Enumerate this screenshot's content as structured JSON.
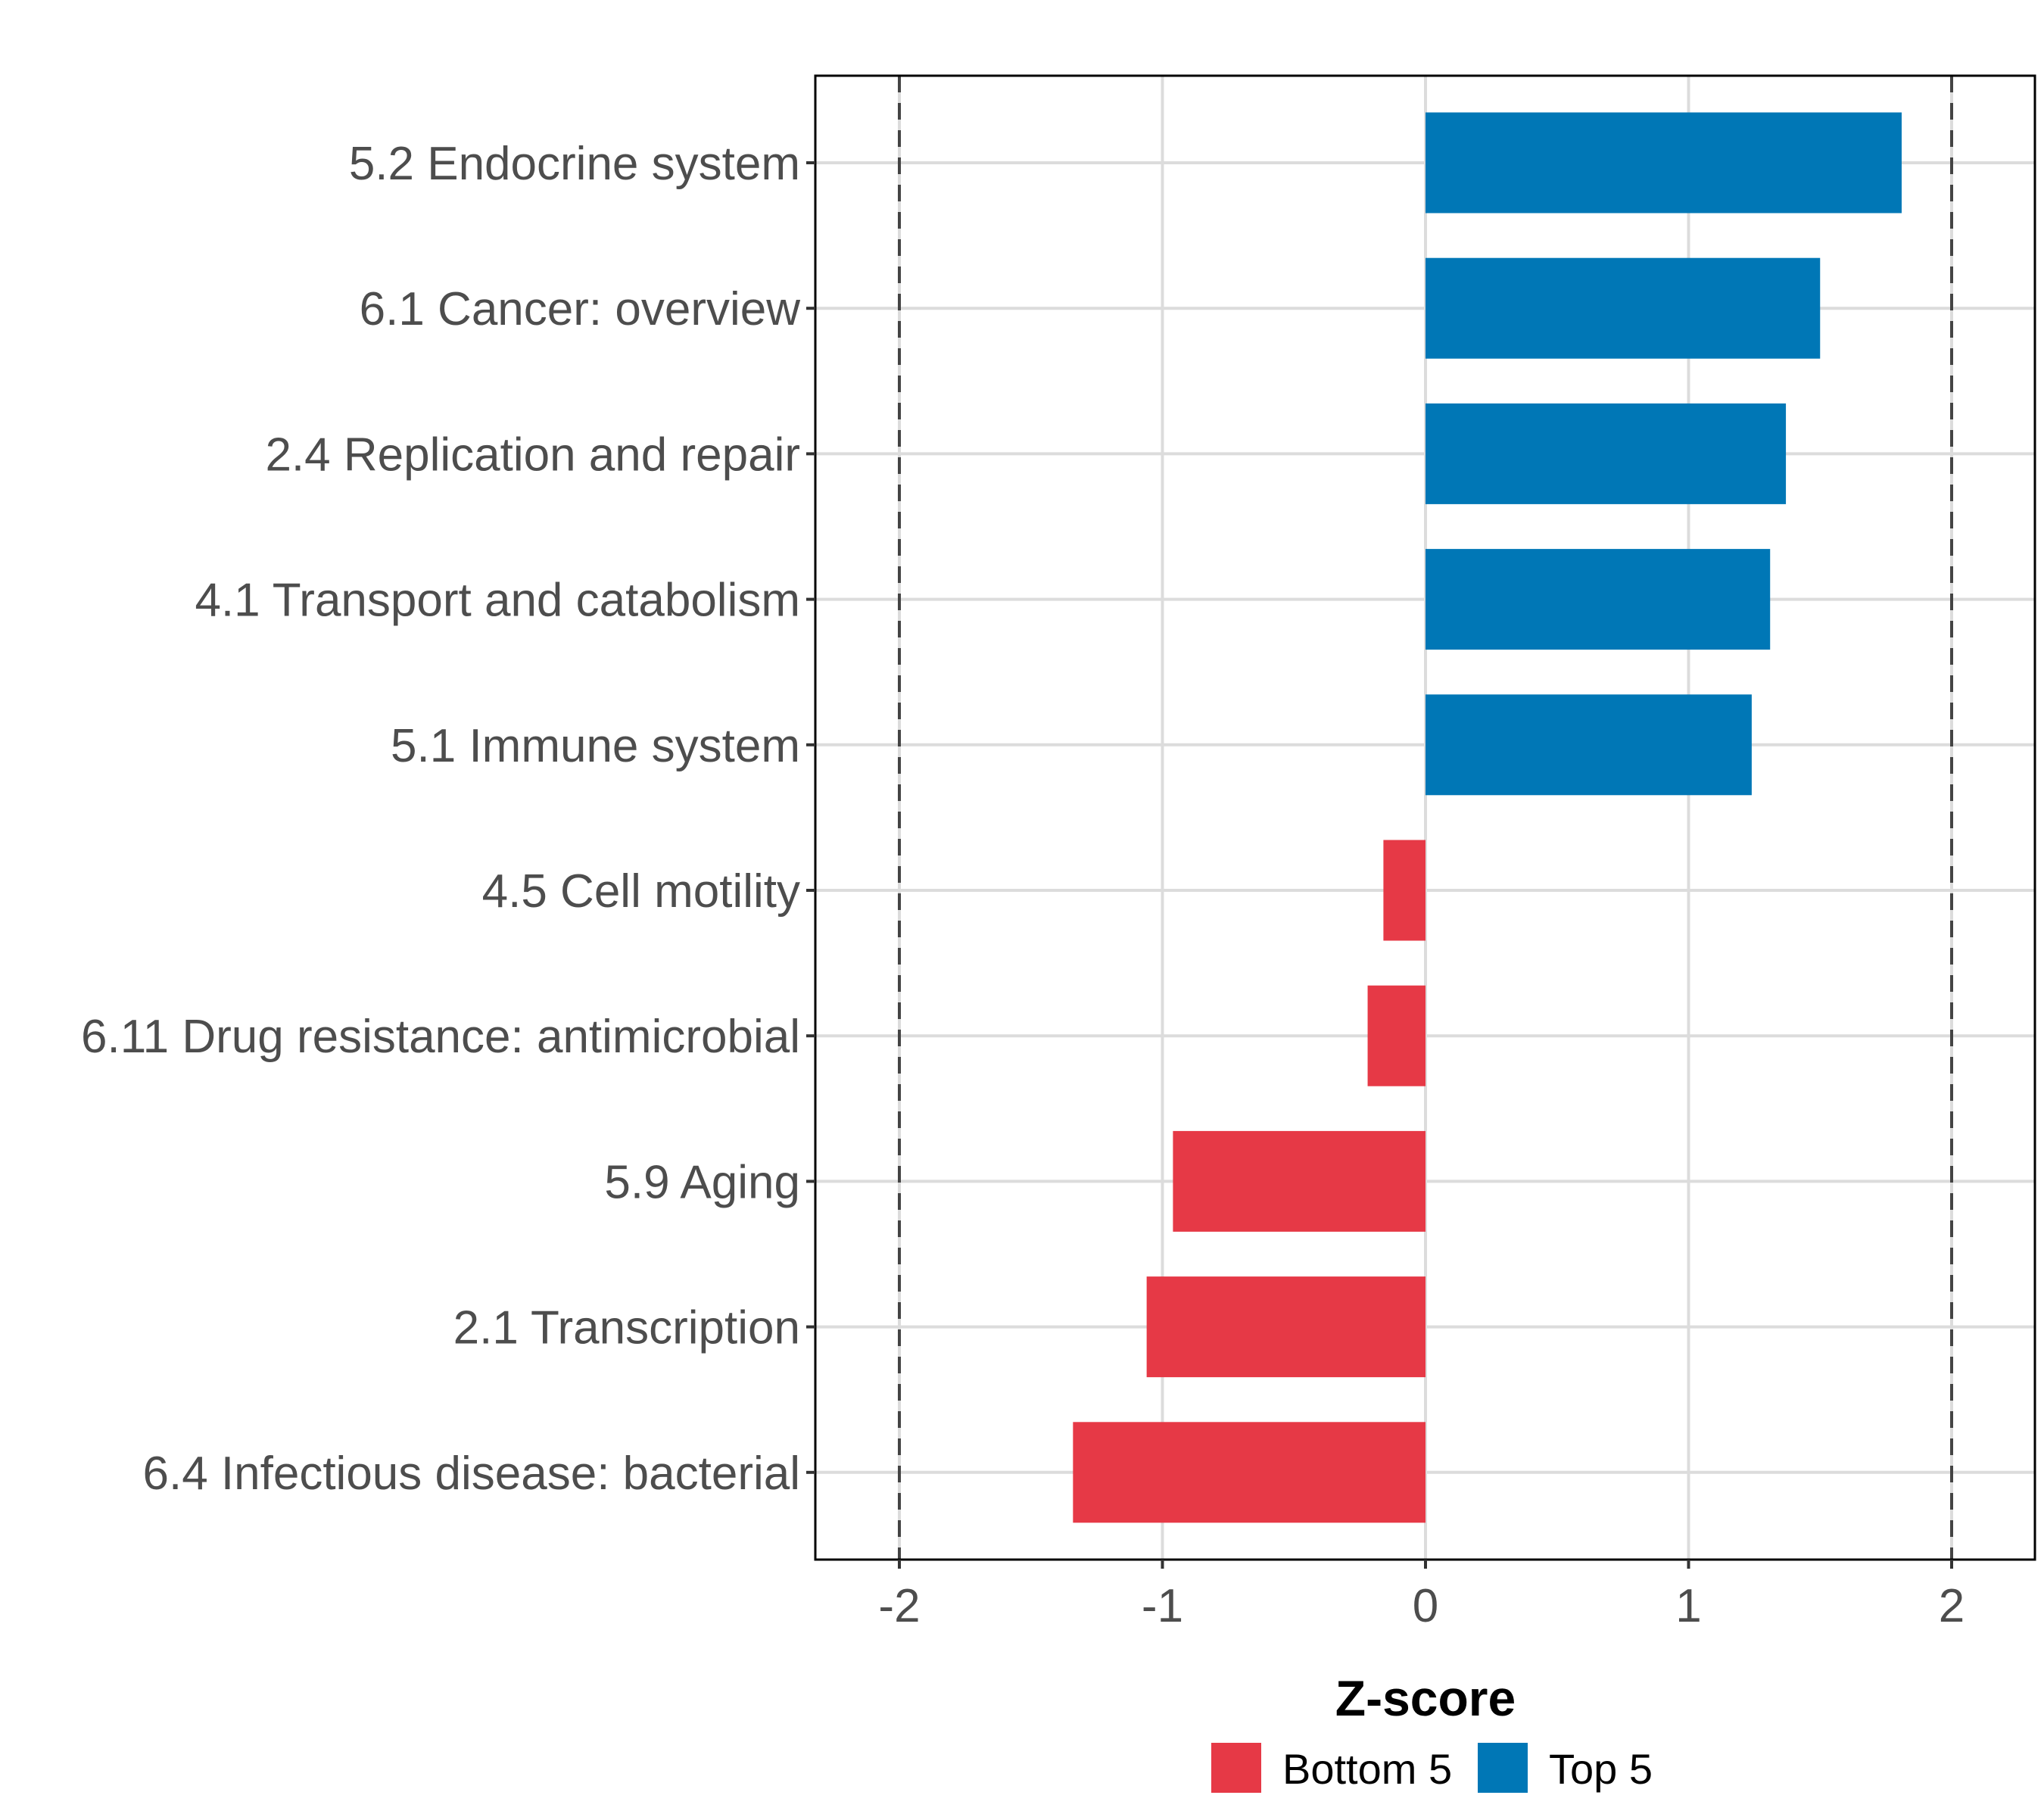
{
  "chart_data": {
    "type": "bar",
    "orientation": "horizontal",
    "title": "",
    "xlabel": "Z-score",
    "ylabel": "",
    "xlim": [
      -2.32,
      2.32
    ],
    "x_ticks": [
      -2,
      -1,
      0,
      1,
      2
    ],
    "x_tick_labels": [
      "-2",
      "-1",
      "0",
      "1",
      "2"
    ],
    "reference_lines": [
      -2,
      2
    ],
    "reference_line_style": "dashed",
    "grid": true,
    "categories": [
      "5.2 Endocrine system",
      "6.1 Cancer: overview",
      "2.4 Replication and repair",
      "4.1 Transport and catabolism",
      "5.1 Immune system",
      "4.5 Cell motility",
      "6.11 Drug resistance: antimicrobial",
      "5.9 Aging",
      "2.1 Transcription",
      "6.4 Infectious disease: bacterial"
    ],
    "values": [
      1.81,
      1.5,
      1.37,
      1.31,
      1.24,
      -0.16,
      -0.22,
      -0.96,
      -1.06,
      -1.34
    ],
    "groups": [
      "Top 5",
      "Top 5",
      "Top 5",
      "Top 5",
      "Top 5",
      "Bottom 5",
      "Bottom 5",
      "Bottom 5",
      "Bottom 5",
      "Bottom 5"
    ],
    "legend": {
      "placement": "bottom",
      "entries": [
        {
          "label": "Bottom 5",
          "color": "#E63946"
        },
        {
          "label": "Top 5",
          "color": "#0077B6"
        }
      ]
    },
    "colors": {
      "Bottom 5": "#E63946",
      "Top 5": "#0077B6"
    }
  }
}
